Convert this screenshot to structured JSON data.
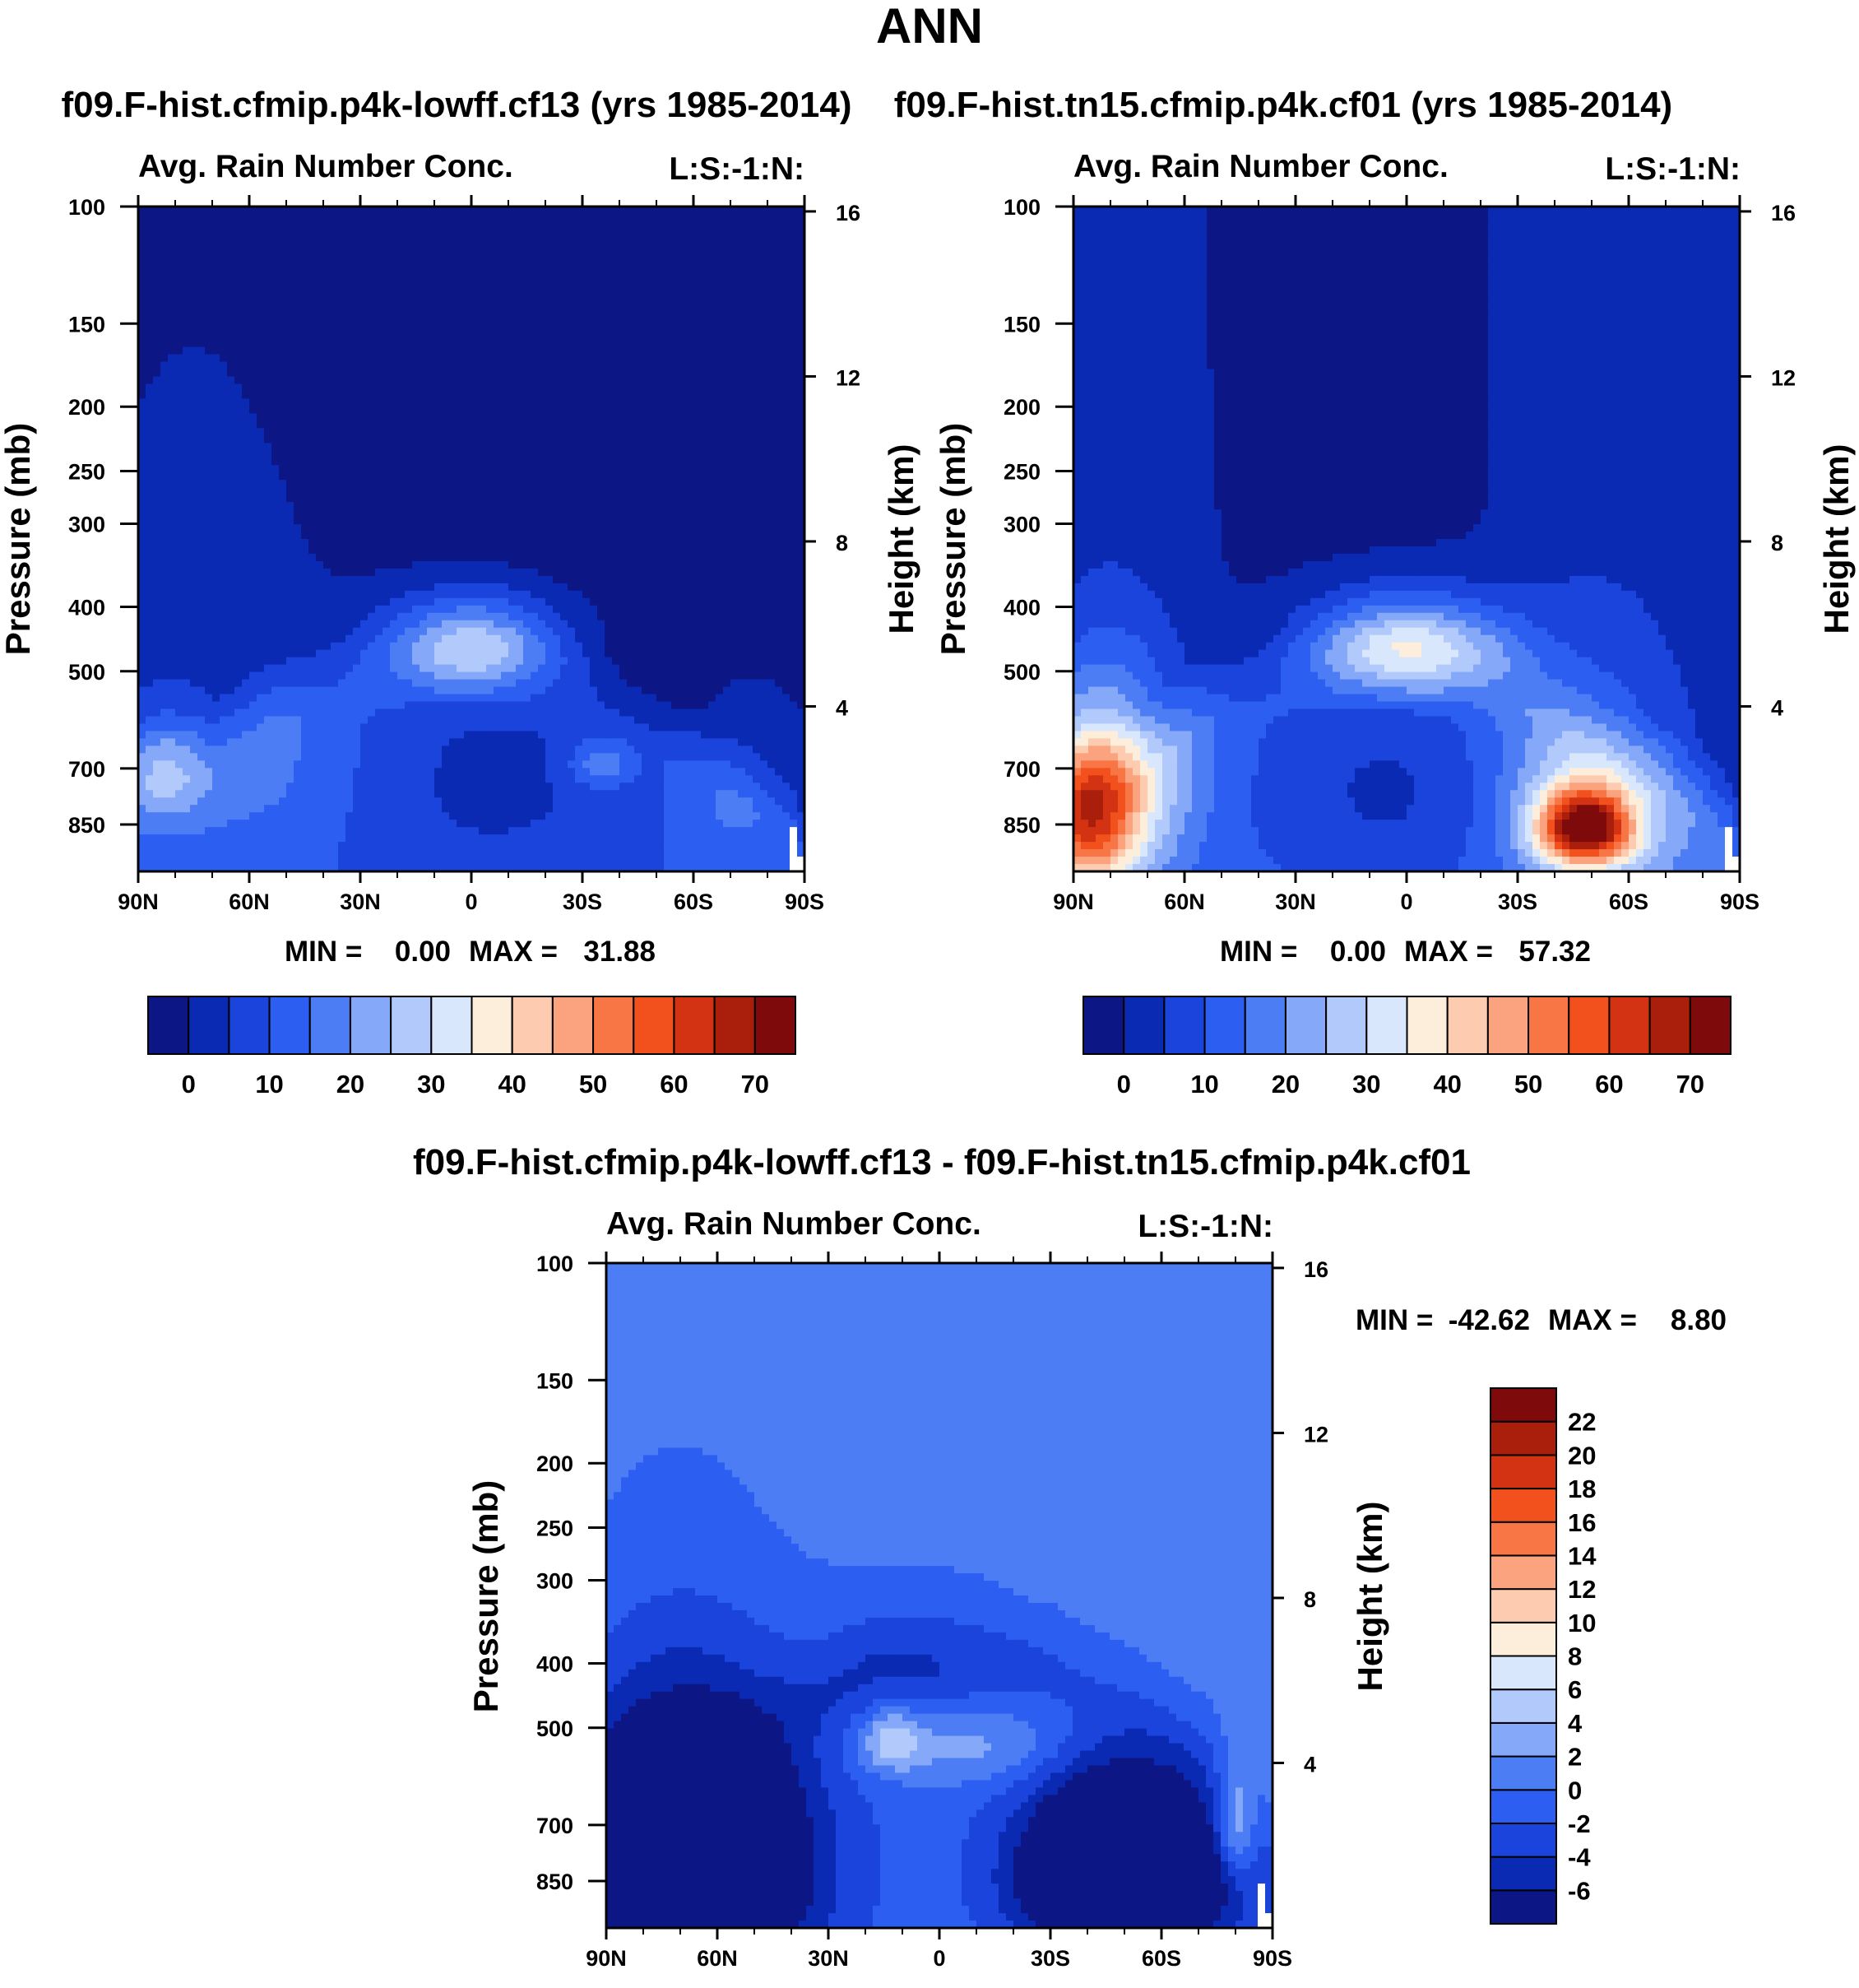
{
  "main_title": "ANN",
  "colors": {
    "abs_palette": [
      "#0c1785",
      "#0a2ab3",
      "#1b44dc",
      "#2c5ef2",
      "#4d7df5",
      "#86a8f9",
      "#b2c9fb",
      "#d9e7fd",
      "#fdeedc",
      "#fccbb0",
      "#fba27e",
      "#f87646",
      "#f2501c",
      "#d33312",
      "#a91f0c",
      "#7e0a0b"
    ],
    "diff_palette": [
      "#0c1785",
      "#0a2ab3",
      "#1b44dc",
      "#2c5ef2",
      "#4d7df5",
      "#86a8f9",
      "#b2c9fb",
      "#d9e7fd",
      "#fdeedc",
      "#fccbb0",
      "#fba27e",
      "#f87646",
      "#f2501c",
      "#d33312",
      "#a91f0c",
      "#7e0a0b"
    ]
  },
  "chart_data": [
    {
      "type": "heatmap",
      "id": "panel1",
      "title": "f09.F-hist.cfmip.p4k-lowff.cf13 (yrs 1985-2014)",
      "left_string": "Avg. Rain Number Conc.",
      "right_string": "L:S:-1:N:",
      "xlabel": "",
      "ylabel": "Pressure (mb)",
      "y2label": "Height (km)",
      "x_ticks": [
        "90N",
        "60N",
        "30N",
        "0",
        "30S",
        "60S",
        "90S"
      ],
      "x_range": [
        90,
        -90
      ],
      "y_ticks": [
        100,
        150,
        200,
        250,
        300,
        400,
        500,
        700,
        850
      ],
      "y_range": [
        100,
        1000
      ],
      "y_scale": "log",
      "y2_ticks": [
        16,
        12,
        8,
        4
      ],
      "stats": {
        "min_label": "MIN =",
        "min": "0.00",
        "max_label": "MAX =",
        "max": "31.88"
      },
      "colorbar": {
        "orientation": "horizontal",
        "levels": [
          0,
          5,
          10,
          15,
          20,
          25,
          30,
          35,
          40,
          45,
          50,
          55,
          60,
          65,
          70
        ],
        "labels": [
          "0",
          "10",
          "20",
          "30",
          "40",
          "50",
          "60",
          "70"
        ]
      },
      "field": {
        "background_level": 0,
        "blobs": [
          {
            "lat": 0,
            "p": 455,
            "sx": 18,
            "sy": 55,
            "v": 31
          },
          {
            "lat": -5,
            "p": 720,
            "sx": 40,
            "sy": 300,
            "v": -8
          },
          {
            "lat": 84,
            "p": 690,
            "sx": 9,
            "sy": 100,
            "v": 16
          },
          {
            "lat": -35,
            "p": 690,
            "sx": 6,
            "sy": 40,
            "v": 12
          },
          {
            "lat": 55,
            "p": 660,
            "sx": 20,
            "sy": 200,
            "v": 7
          },
          {
            "lat": -70,
            "p": 760,
            "sx": 12,
            "sy": 150,
            "v": 6
          }
        ],
        "band": {
          "top": [
            [
              90,
              600
            ],
            [
              70,
              560
            ],
            [
              55,
              470
            ],
            [
              30,
              430
            ],
            [
              0,
              420
            ],
            [
              -30,
              440
            ],
            [
              -55,
              540
            ],
            [
              -75,
              620
            ],
            [
              -87,
              700
            ],
            [
              -90,
              760
            ]
          ],
          "level": 12
        }
      }
    },
    {
      "type": "heatmap",
      "id": "panel2",
      "title": "f09.F-hist.tn15.cfmip.p4k.cf01 (yrs 1985-2014)",
      "left_string": "Avg. Rain Number Conc.",
      "right_string": "L:S:-1:N:",
      "xlabel": "",
      "ylabel": "Pressure (mb)",
      "y2label": "Height (km)",
      "x_ticks": [
        "90N",
        "60N",
        "30N",
        "0",
        "30S",
        "60S",
        "90S"
      ],
      "x_range": [
        90,
        -90
      ],
      "y_ticks": [
        100,
        150,
        200,
        250,
        300,
        400,
        500,
        700,
        850
      ],
      "y_range": [
        100,
        1000
      ],
      "y_scale": "log",
      "y2_ticks": [
        16,
        12,
        8,
        4
      ],
      "stats": {
        "min_label": "MIN =",
        "min": "0.00",
        "max_label": "MAX =",
        "max": "57.32"
      },
      "colorbar": {
        "orientation": "horizontal",
        "levels": [
          0,
          5,
          10,
          15,
          20,
          25,
          30,
          35,
          40,
          45,
          50,
          55,
          60,
          65,
          70
        ],
        "labels": [
          "0",
          "10",
          "20",
          "30",
          "40",
          "50",
          "60",
          "70"
        ]
      },
      "field": {
        "background_level": 0,
        "blobs": [
          {
            "lat": 0,
            "p": 455,
            "sx": 20,
            "sy": 55,
            "v": 34
          },
          {
            "lat": -48,
            "p": 860,
            "sx": 9,
            "sy": 80,
            "v": 57
          },
          {
            "lat": 86,
            "p": 830,
            "sx": 10,
            "sy": 160,
            "v": 40
          },
          {
            "lat": 0,
            "p": 760,
            "sx": 35,
            "sy": 250,
            "v": -10
          },
          {
            "lat": -50,
            "p": 740,
            "sx": 20,
            "sy": 250,
            "v": 18
          },
          {
            "lat": 78,
            "p": 680,
            "sx": 15,
            "sy": 200,
            "v": 20
          }
        ],
        "band": {
          "top": [
            [
              90,
              600
            ],
            [
              70,
              560
            ],
            [
              55,
              470
            ],
            [
              30,
              430
            ],
            [
              0,
              410
            ],
            [
              -30,
              430
            ],
            [
              -55,
              540
            ],
            [
              -75,
              620
            ],
            [
              -87,
              700
            ],
            [
              -90,
              760
            ]
          ],
          "level": 14
        }
      }
    },
    {
      "type": "heatmap",
      "id": "panel3",
      "title": "f09.F-hist.cfmip.p4k-lowff.cf13 - f09.F-hist.tn15.cfmip.p4k.cf01",
      "left_string": "Avg. Rain Number Conc.",
      "right_string": "L:S:-1:N:",
      "xlabel": "",
      "ylabel": "Pressure (mb)",
      "y2label": "Height (km)",
      "x_ticks": [
        "90N",
        "60N",
        "30N",
        "0",
        "30S",
        "60S",
        "90S"
      ],
      "x_range": [
        90,
        -90
      ],
      "y_ticks": [
        100,
        150,
        200,
        250,
        300,
        400,
        500,
        700,
        850
      ],
      "y_range": [
        100,
        1000
      ],
      "y_scale": "log",
      "y2_ticks": [
        16,
        12,
        8,
        4
      ],
      "stats": {
        "min_label": "MIN =",
        "min": "-42.62",
        "max_label": "MAX =",
        "max": "8.80"
      },
      "colorbar": {
        "orientation": "vertical",
        "levels": [
          -6,
          -4,
          -2,
          0,
          2,
          4,
          6,
          8,
          10,
          12,
          14,
          16,
          18,
          20,
          22
        ],
        "labels": [
          "-6",
          "-4",
          "-2",
          "0",
          "2",
          "4",
          "6",
          "8",
          "10",
          "12",
          "14",
          "16",
          "18",
          "20",
          "22"
        ]
      },
      "field": {
        "background_level": 1,
        "blobs": [
          {
            "lat": 70,
            "p": 800,
            "sx": 22,
            "sy": 250,
            "v": -20
          },
          {
            "lat": -50,
            "p": 830,
            "sx": 18,
            "sy": 170,
            "v": -20
          },
          {
            "lat": -8,
            "p": 520,
            "sx": 20,
            "sy": 60,
            "v": 5
          },
          {
            "lat": 13,
            "p": 520,
            "sx": 6,
            "sy": 40,
            "v": 6
          },
          {
            "lat": -80,
            "p": 700,
            "sx": 4,
            "sy": 100,
            "v": 7
          },
          {
            "lat": 5,
            "p": 420,
            "sx": 25,
            "sy": 80,
            "v": -4
          }
        ],
        "band": {
          "top": [
            [
              90,
              470
            ],
            [
              60,
              420
            ],
            [
              40,
              380
            ],
            [
              20,
              320
            ],
            [
              0,
              320
            ],
            [
              -30,
              320
            ],
            [
              -55,
              380
            ],
            [
              -75,
              450
            ],
            [
              -87,
              560
            ],
            [
              -90,
              650
            ]
          ],
          "level": -2
        }
      }
    }
  ]
}
